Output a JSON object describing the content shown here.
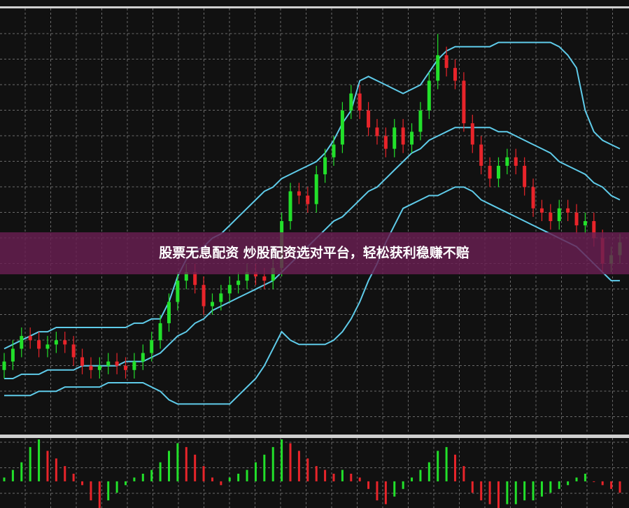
{
  "banner": {
    "text": "股票无息配资 炒股配资选对平台，轻松获利稳赚不赔"
  },
  "chart_data": [
    {
      "type": "candlestick",
      "categories": [
        null,
        null,
        null,
        null,
        null,
        null,
        null,
        null,
        null,
        null,
        null,
        null,
        null,
        null,
        null,
        null,
        null,
        null,
        null,
        null,
        null,
        null,
        null,
        null,
        null,
        null,
        null,
        null,
        null,
        null,
        null,
        null,
        null,
        null,
        null,
        null,
        null,
        null,
        null,
        null,
        null,
        null,
        null,
        null,
        null,
        null,
        null,
        null,
        null,
        null,
        null,
        null,
        null,
        null,
        null,
        null,
        null,
        null,
        null,
        null,
        null,
        null,
        null,
        null,
        null,
        null,
        null,
        null,
        null,
        null,
        null,
        null
      ],
      "open": [
        15,
        17,
        20,
        23,
        22,
        20,
        21,
        22,
        21,
        18,
        16,
        15,
        16,
        17,
        16,
        15,
        17,
        19,
        22,
        26,
        31,
        36,
        38,
        35,
        30,
        31,
        33,
        35,
        36,
        38,
        37,
        36,
        39,
        50,
        57,
        56,
        54,
        61,
        65,
        68,
        76,
        80,
        76,
        72,
        70,
        67,
        72,
        68,
        71,
        76,
        83,
        89,
        86,
        83,
        73,
        68,
        63,
        60,
        63,
        65,
        63,
        58,
        53,
        52,
        50,
        53,
        52,
        49,
        50,
        46,
        40,
        42
      ],
      "high": [
        19,
        22,
        25,
        25,
        24,
        23,
        24,
        24,
        23,
        20,
        18,
        18,
        19,
        19,
        18,
        19,
        21,
        24,
        28,
        33,
        38,
        40,
        40,
        37,
        33,
        35,
        37,
        38,
        40,
        40,
        39,
        41,
        52,
        59,
        59,
        58,
        63,
        67,
        70,
        78,
        82,
        82,
        78,
        74,
        72,
        74,
        74,
        73,
        78,
        85,
        94,
        91,
        88,
        85,
        75,
        70,
        65,
        65,
        67,
        67,
        65,
        60,
        55,
        54,
        55,
        55,
        54,
        52,
        52,
        48,
        44,
        47
      ],
      "low": [
        13,
        15,
        18,
        20,
        18,
        18,
        19,
        19,
        16,
        14,
        13,
        13,
        14,
        14,
        13,
        13,
        15,
        17,
        20,
        24,
        29,
        34,
        33,
        28,
        28,
        29,
        31,
        33,
        34,
        35,
        34,
        34,
        37,
        48,
        54,
        52,
        52,
        59,
        63,
        66,
        74,
        74,
        70,
        68,
        65,
        65,
        66,
        66,
        69,
        74,
        81,
        84,
        81,
        71,
        66,
        61,
        58,
        58,
        61,
        61,
        56,
        51,
        50,
        48,
        48,
        50,
        47,
        47,
        44,
        38,
        38,
        40
      ],
      "close": [
        17,
        20,
        23,
        22,
        20,
        21,
        22,
        21,
        18,
        16,
        15,
        16,
        17,
        16,
        15,
        17,
        19,
        22,
        26,
        31,
        36,
        38,
        35,
        30,
        31,
        33,
        35,
        36,
        38,
        37,
        36,
        39,
        50,
        57,
        56,
        54,
        61,
        65,
        68,
        76,
        80,
        76,
        72,
        70,
        67,
        72,
        68,
        71,
        76,
        83,
        89,
        86,
        83,
        73,
        68,
        63,
        60,
        63,
        65,
        63,
        58,
        53,
        52,
        50,
        53,
        52,
        49,
        50,
        46,
        40,
        42,
        45
      ],
      "up_color": "#22e02a",
      "down_color": "#e8242a",
      "bands": {
        "color": "#5fcbe9",
        "upper": [
          20,
          21,
          22,
          23,
          24,
          24,
          25,
          25,
          25,
          25,
          25,
          25,
          25,
          25,
          25,
          26,
          26,
          27,
          27,
          31,
          37,
          41,
          43,
          44,
          46,
          47,
          49,
          51,
          53,
          55,
          57,
          58,
          60,
          61,
          62,
          63,
          64,
          66,
          69,
          73,
          76,
          83,
          84,
          83,
          82,
          81,
          80,
          81,
          82,
          85,
          88,
          90,
          91,
          91,
          91,
          91,
          91,
          92,
          92,
          92,
          92,
          92,
          92,
          92,
          91,
          89,
          86,
          76,
          71,
          69,
          68,
          67
        ],
        "middle": [
          13,
          13,
          14,
          14,
          14,
          15,
          15,
          15,
          15,
          16,
          16,
          16,
          16,
          16,
          17,
          17,
          17,
          18,
          19,
          21,
          23,
          24,
          26,
          27,
          29,
          30,
          31,
          32,
          33,
          34,
          35,
          36,
          38,
          40,
          42,
          44,
          46,
          48,
          50,
          51,
          53,
          55,
          57,
          58,
          60,
          62,
          64,
          66,
          67,
          69,
          70,
          71,
          72,
          72,
          72,
          72,
          72,
          71,
          71,
          70,
          69,
          68,
          67,
          66,
          64,
          63,
          62,
          61,
          59,
          58,
          56,
          55
        ],
        "lower": [
          9,
          9,
          9,
          9,
          10,
          10,
          10,
          11,
          11,
          11,
          11,
          11,
          12,
          12,
          12,
          12,
          12,
          11,
          10,
          8,
          7,
          7,
          7,
          7,
          7,
          7,
          7,
          9,
          11,
          13,
          16,
          20,
          24,
          22,
          21,
          21,
          21,
          21,
          22,
          24,
          27,
          31,
          36,
          40,
          45,
          49,
          53,
          54,
          55,
          56,
          56,
          57,
          58,
          58,
          57,
          55,
          54,
          53,
          52,
          51,
          50,
          49,
          48,
          47,
          46,
          45,
          44,
          42,
          40,
          38,
          36,
          36
        ]
      },
      "ylim": [
        0,
        100
      ]
    },
    {
      "type": "bar",
      "categories": [
        null,
        null,
        null,
        null,
        null,
        null,
        null,
        null,
        null,
        null,
        null,
        null,
        null,
        null,
        null,
        null,
        null,
        null,
        null,
        null,
        null,
        null,
        null,
        null,
        null,
        null,
        null,
        null,
        null,
        null,
        null,
        null,
        null,
        null,
        null,
        null,
        null,
        null,
        null,
        null,
        null,
        null,
        null,
        null,
        null,
        null,
        null,
        null,
        null,
        null,
        null,
        null,
        null,
        null,
        null,
        null,
        null,
        null,
        null,
        null,
        null,
        null,
        null,
        null,
        null,
        null,
        null,
        null,
        null,
        null,
        null,
        null
      ],
      "values": [
        1,
        3,
        5,
        9,
        11,
        8,
        6,
        4,
        2,
        -1,
        -5,
        -7,
        -5,
        -3,
        -1,
        1,
        2,
        3,
        5,
        8,
        10,
        9,
        7,
        4,
        1,
        -1,
        1,
        2,
        3,
        5,
        7,
        9,
        11,
        10,
        8,
        6,
        4,
        3,
        2,
        3,
        2,
        1,
        -2,
        -5,
        -6,
        -4,
        -2,
        1,
        3,
        5,
        8,
        9,
        7,
        4,
        -3,
        -5,
        -6,
        -7,
        -6,
        -6,
        -5,
        -5,
        -4,
        -3,
        -2,
        -1,
        1,
        2,
        0,
        -1,
        -2,
        -3
      ],
      "up_color": "#22e02a",
      "down_color": "#e8242a",
      "ylim": [
        -7,
        11
      ]
    }
  ]
}
